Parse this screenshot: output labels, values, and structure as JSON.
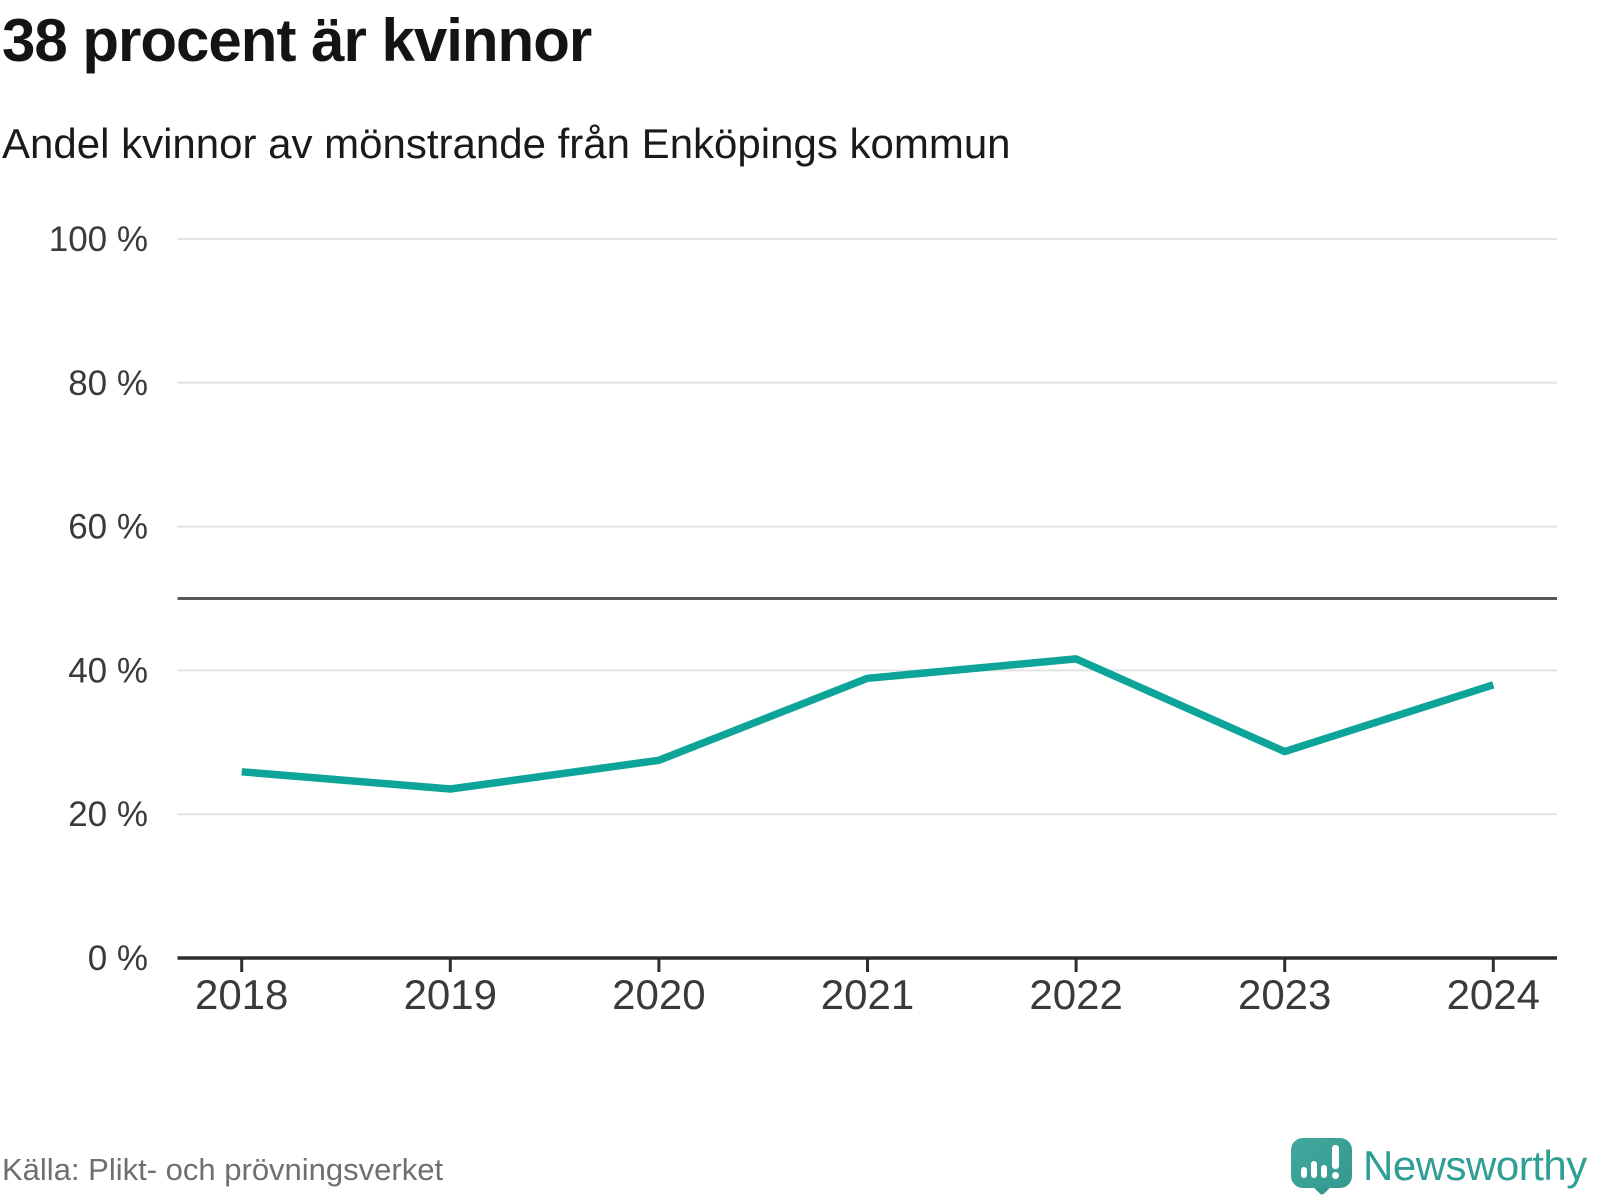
{
  "header": {
    "title": "38 procent är kvinnor",
    "subtitle": "Andel kvinnor av mönstrande från Enköpings kommun"
  },
  "footer": {
    "source": "Källa: Plikt- och prövningsverket",
    "brand": "Newsworthy"
  },
  "colors": {
    "line": "#0da499",
    "reference_line": "#58585a",
    "grid": "#e3e3e3",
    "axis": "#2e2e2e",
    "tick_text": "#3a3a3a",
    "brand_teal": "#2f9e95"
  },
  "chart_data": {
    "type": "line",
    "title": "38 procent är kvinnor",
    "subtitle": "Andel kvinnor av mönstrande från Enköpings kommun",
    "x": [
      2018,
      2019,
      2020,
      2021,
      2022,
      2023,
      2024
    ],
    "series": [
      {
        "name": "Andel kvinnor av mönstrande",
        "values": [
          25.9,
          23.5,
          27.5,
          38.9,
          41.6,
          28.7,
          38.0
        ]
      }
    ],
    "xlabel": "",
    "ylabel": "",
    "ylim": [
      0,
      100
    ],
    "yticks": [
      0,
      20,
      40,
      60,
      80,
      100
    ],
    "ytick_suffix": " %",
    "reference_line": 50,
    "grid": "horizontal",
    "legend": "none"
  }
}
